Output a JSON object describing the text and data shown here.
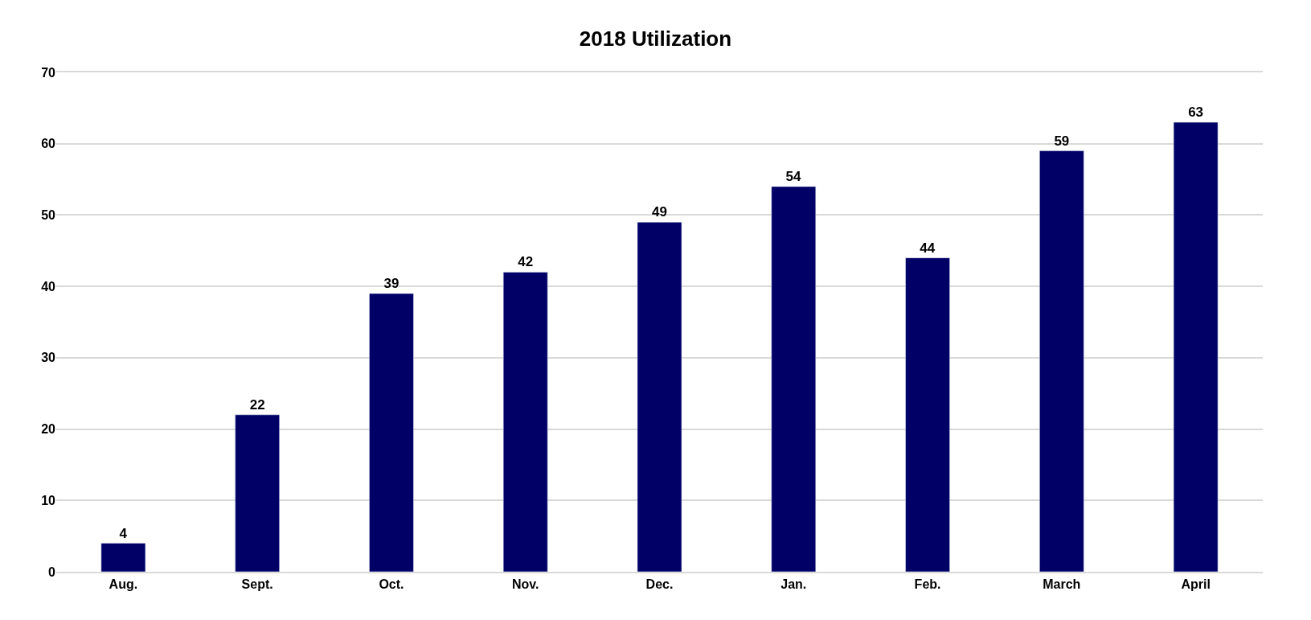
{
  "chart_data": {
    "type": "bar",
    "title": "2018 Utilization",
    "categories": [
      "Aug.",
      "Sept.",
      "Oct.",
      "Nov.",
      "Dec.",
      "Jan.",
      "Feb.",
      "March",
      "April"
    ],
    "values": [
      4,
      22,
      39,
      42,
      49,
      54,
      44,
      59,
      63
    ],
    "color": "#000066",
    "ylim": [
      0,
      70
    ],
    "yticks": [
      0,
      10,
      20,
      30,
      40,
      50,
      60,
      70
    ],
    "grid": "y",
    "data_labels": true
  }
}
